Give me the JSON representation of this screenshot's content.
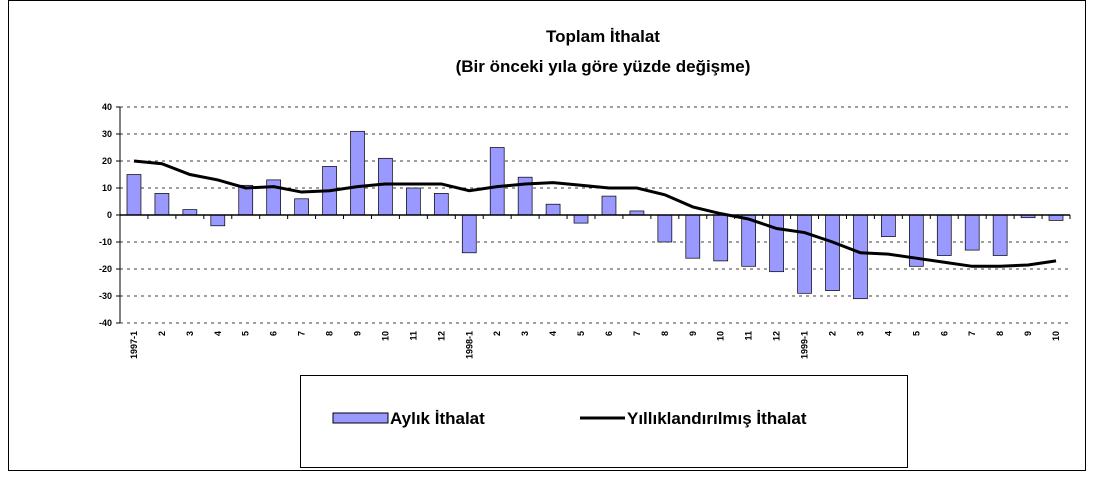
{
  "chart_data": {
    "type": "bar",
    "title": "Toplam İthalat",
    "subtitle": "(Bir önceki yıla göre yüzde değişme)",
    "categories": [
      "1997-1",
      "2",
      "3",
      "4",
      "5",
      "6",
      "7",
      "8",
      "9",
      "10",
      "11",
      "12",
      "1998-1",
      "2",
      "3",
      "4",
      "5",
      "6",
      "7",
      "8",
      "9",
      "10",
      "11",
      "12",
      "1999-1",
      "2",
      "3",
      "4",
      "5",
      "6",
      "7",
      "8",
      "9",
      "10"
    ],
    "series": [
      {
        "name": "Aylık İthalat",
        "type": "bar",
        "color": "#9999ff",
        "values": [
          15,
          8,
          2,
          -4,
          11,
          13,
          6,
          18,
          31,
          21,
          10,
          8,
          -14,
          25,
          14,
          4,
          -3,
          7,
          1.5,
          -10,
          -16,
          -17,
          -19,
          -21,
          -29,
          -28,
          -31,
          -8,
          -19,
          -15,
          -13,
          -15,
          -1,
          -2
        ]
      },
      {
        "name": "Yıllıklandırılmış İthalat",
        "type": "line",
        "color": "#000000",
        "values": [
          20,
          19,
          15,
          13,
          10,
          10.5,
          8.5,
          9,
          10.5,
          11.5,
          11.5,
          11.5,
          9,
          10.5,
          11.5,
          12,
          11,
          10,
          10,
          7.5,
          3,
          0.5,
          -1.5,
          -5,
          -6.5,
          -10,
          -14,
          -14.5,
          -16,
          -17.5,
          -19,
          -19,
          -18.5,
          -17
        ]
      }
    ],
    "ylim": [
      -40,
      40
    ],
    "yticks": [
      -40,
      -30,
      -20,
      -10,
      0,
      10,
      20,
      30,
      40
    ],
    "grid": true
  }
}
